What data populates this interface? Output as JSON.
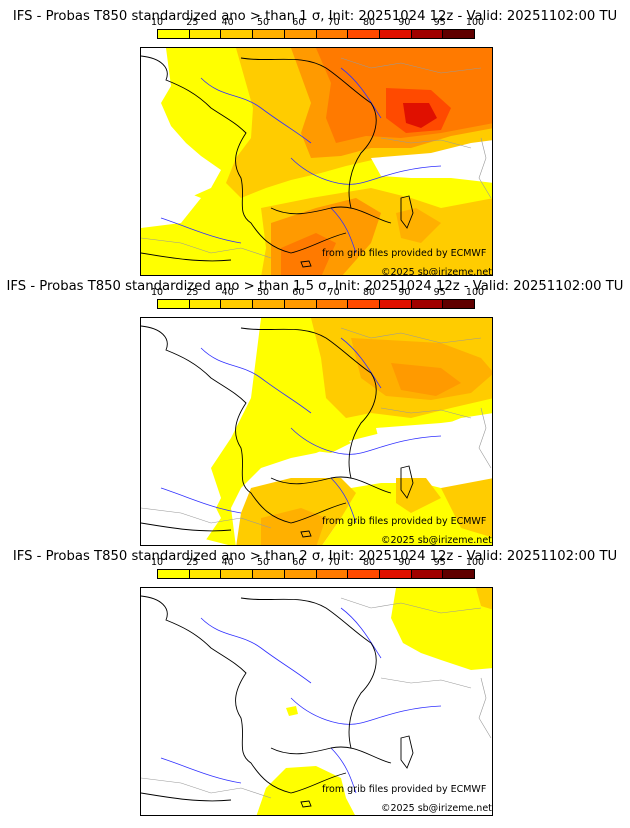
{
  "legend": {
    "ticks": [
      "10",
      "25",
      "40",
      "50",
      "60",
      "70",
      "80",
      "90",
      "95",
      "100"
    ],
    "colors": [
      "#ffff00",
      "#ffe800",
      "#ffcc00",
      "#ffb000",
      "#ff9a00",
      "#ff7a00",
      "#ff4a00",
      "#e01000",
      "#a00000",
      "#600000"
    ]
  },
  "credits": {
    "source": "from grib files provided by ECMWF",
    "copyright": "©2025 sb@irizeme.net"
  },
  "panels": [
    {
      "title": "IFS - Probas T850  standardized ano > than 1 σ, Init: 20251024 12z - Valid: 20251102:00 TU",
      "level": "high"
    },
    {
      "title": "IFS - Probas T850  standardized ano > than 1.5 σ, Init: 20251024 12z - Valid: 20251102:00 TU",
      "level": "mid"
    },
    {
      "title": "IFS - Probas T850  standardized ano > than 2 σ, Init: 20251024 12z - Valid: 20251102:00 TU",
      "level": "low"
    }
  ]
}
